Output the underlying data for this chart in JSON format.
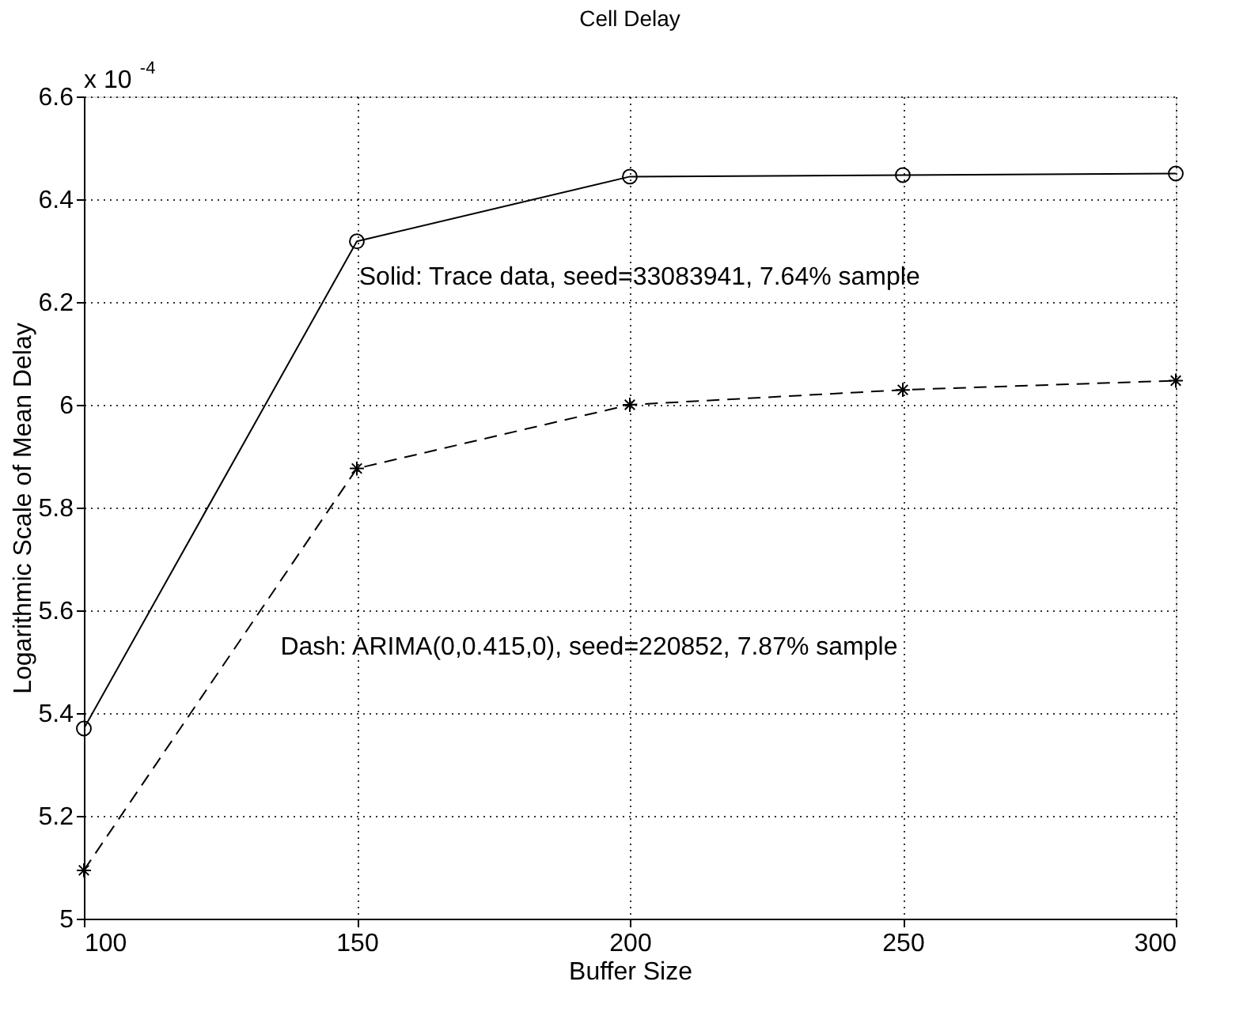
{
  "chart_data": {
    "type": "line",
    "title": "Cell Delay",
    "xlabel": "Buffer Size",
    "ylabel": "Logarithmic Scale of Mean Delay",
    "x": [
      100,
      150,
      200,
      250,
      300
    ],
    "series": [
      {
        "color": "#000000",
        "line_style": "solid",
        "marker": "circle",
        "values": [
          5.37,
          6.318,
          6.444,
          6.447,
          6.45
        ]
      },
      {
        "color": "#000000",
        "line_style": "dashed",
        "marker": "cross",
        "values": [
          5.094,
          5.876,
          6.0,
          6.029,
          6.047
        ]
      }
    ],
    "xlim": [
      100,
      300
    ],
    "xticks": [
      100,
      150,
      200,
      250,
      300
    ],
    "ylim": [
      5,
      6.6
    ],
    "yticks": [
      5,
      5.2,
      5.4,
      5.6,
      5.8,
      6,
      6.2,
      6.4,
      6.6
    ],
    "grid": true,
    "annotations": [
      "x 10$^{-4}$",
      "Solid: Trace data, seed=33083941, 7.64% sample",
      "Dash: ARIMA(0,0.415,0), seed=220852, 7.87% sample"
    ]
  }
}
